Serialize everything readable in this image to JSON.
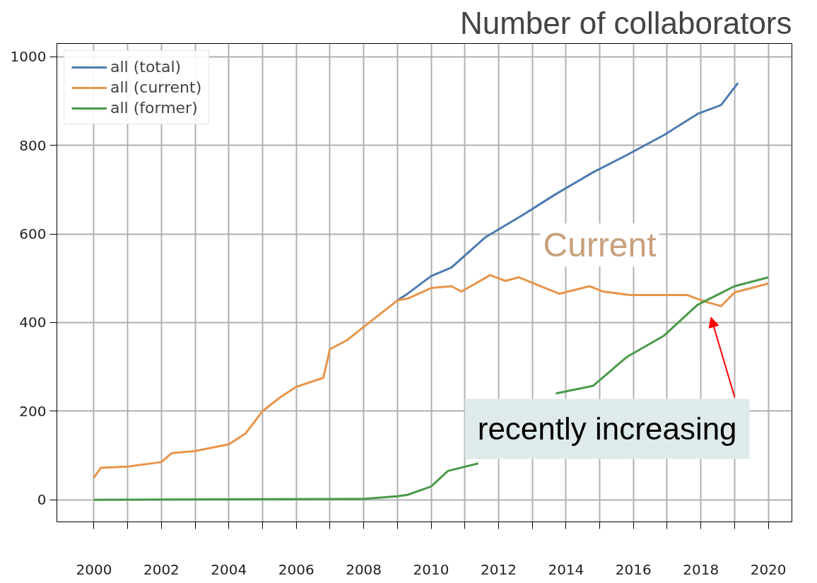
{
  "chart_data": {
    "type": "line",
    "title": "Number of collaborators",
    "xlim": [
      1998.9,
      2020.7
    ],
    "ylim": [
      -50,
      1030
    ],
    "xticks": [
      2000,
      {
        "value": 2001,
        "label": null
      },
      2002,
      {
        "value": 2003,
        "label": null
      },
      2004,
      {
        "value": 2005,
        "label": null
      },
      2006,
      {
        "value": 2007,
        "label": null
      },
      2008,
      {
        "value": 2009,
        "label": null
      },
      2010,
      {
        "value": 2011,
        "label": null
      },
      2012,
      {
        "value": 2013,
        "label": null
      },
      2014,
      {
        "value": 2015,
        "label": null
      },
      2016,
      {
        "value": 2017,
        "label": null
      },
      2018,
      {
        "value": 2019,
        "label": null
      },
      2020
    ],
    "yticks": [
      0,
      200,
      400,
      600,
      800,
      1000
    ],
    "grid": true,
    "legend": "top left",
    "line_style": "solid",
    "series": [
      {
        "name": "all (total)",
        "color": "#4c7bb0",
        "x": [
          2009,
          2009.3,
          2010,
          2010.6,
          2011.6,
          2012.7,
          2013.7,
          2014.8,
          2015.8,
          2016.9,
          2017.9,
          2018.6,
          2019.1
        ],
        "values": [
          450,
          465,
          505,
          524,
          592,
          642,
          690,
          739,
          778,
          823,
          871,
          891,
          941
        ]
      },
      {
        "name": "all (current)",
        "color": "#e8944a",
        "x": [
          2000,
          2000.2,
          2001,
          2002,
          2002.3,
          2003,
          2004,
          2004.5,
          2005,
          2005.5,
          2006,
          2006.8,
          2007,
          2007.5,
          2008,
          2008.5,
          2009,
          2009.3,
          2010,
          2010.6,
          2010.9,
          2011.75,
          2012.2,
          2012.6,
          2013.8,
          2014.7,
          2015.1,
          2015.9,
          2017.6,
          2018.1,
          2018.6,
          2019.0,
          2020.0
        ],
        "values": [
          50,
          72,
          75,
          85,
          105,
          110,
          125,
          150,
          200,
          230,
          255,
          275,
          340,
          360,
          390,
          420,
          450,
          454,
          478,
          482,
          470,
          507,
          494,
          502,
          465,
          482,
          470,
          462,
          462,
          448,
          437,
          468,
          488
        ]
      },
      {
        "name": "all (former)",
        "color": "#4a9a4a",
        "x": [
          2000,
          2008,
          2009,
          2009.3,
          2010,
          2010.5,
          2011.4,
          2012.0,
          2013.0,
          2013.7,
          2014.8,
          2015.8,
          2016.9,
          2017.9,
          2019.0,
          2020.0
        ],
        "values": [
          0,
          2,
          8,
          11,
          30,
          65,
          82,
          null,
          null,
          240,
          257,
          322,
          370,
          440,
          482,
          502
        ]
      }
    ],
    "annotations": [
      "Current",
      "recently increasing"
    ]
  }
}
